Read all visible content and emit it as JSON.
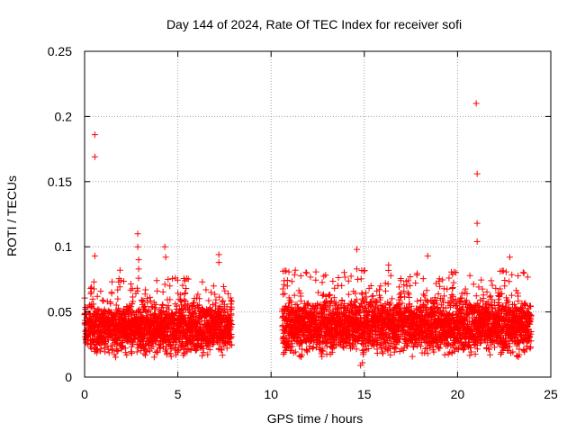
{
  "chart_data": {
    "type": "scatter",
    "title": "Day 144 of 2024, Rate Of TEC Index for receiver sofi",
    "xlabel": "GPS time / hours",
    "ylabel": "ROTI / TECUs",
    "xlim": [
      0,
      25
    ],
    "ylim": [
      0,
      0.25
    ],
    "xticks": [
      0,
      5,
      10,
      15,
      20,
      25
    ],
    "yticks": [
      0,
      0.05,
      0.1,
      0.15,
      0.2,
      0.25
    ],
    "xtick_labels": [
      "0",
      "5",
      "10",
      "15",
      "20",
      "25"
    ],
    "ytick_labels": [
      "0",
      "0.05",
      "0.1",
      "0.15",
      "0.2",
      "0.25"
    ],
    "grid": true,
    "marker": "+",
    "series": [
      {
        "name": "ROTI",
        "color": "#ff0000",
        "segments": [
          {
            "x_start": 0.0,
            "x_end": 7.9,
            "y_low": 0.015,
            "y_high": 0.075,
            "y_center": 0.038
          },
          {
            "x_start": 10.6,
            "x_end": 23.95,
            "y_low": 0.015,
            "y_high": 0.08,
            "y_center": 0.04
          }
        ],
        "outliers": [
          {
            "x": 0.55,
            "y": 0.186
          },
          {
            "x": 0.55,
            "y": 0.169
          },
          {
            "x": 0.55,
            "y": 0.093
          },
          {
            "x": 2.85,
            "y": 0.11
          },
          {
            "x": 2.85,
            "y": 0.1
          },
          {
            "x": 2.9,
            "y": 0.09
          },
          {
            "x": 2.9,
            "y": 0.083
          },
          {
            "x": 4.3,
            "y": 0.1
          },
          {
            "x": 4.35,
            "y": 0.092
          },
          {
            "x": 7.2,
            "y": 0.094
          },
          {
            "x": 7.2,
            "y": 0.088
          },
          {
            "x": 1.9,
            "y": 0.082
          },
          {
            "x": 14.6,
            "y": 0.098
          },
          {
            "x": 14.6,
            "y": 0.083
          },
          {
            "x": 14.8,
            "y": 0.009
          },
          {
            "x": 14.9,
            "y": 0.011
          },
          {
            "x": 18.4,
            "y": 0.093
          },
          {
            "x": 21.0,
            "y": 0.21
          },
          {
            "x": 21.05,
            "y": 0.156
          },
          {
            "x": 21.05,
            "y": 0.118
          },
          {
            "x": 21.05,
            "y": 0.104
          },
          {
            "x": 22.8,
            "y": 0.092
          },
          {
            "x": 16.3,
            "y": 0.086
          },
          {
            "x": 11.3,
            "y": 0.082
          },
          {
            "x": 10.7,
            "y": 0.074
          },
          {
            "x": 10.7,
            "y": 0.071
          }
        ]
      }
    ]
  }
}
